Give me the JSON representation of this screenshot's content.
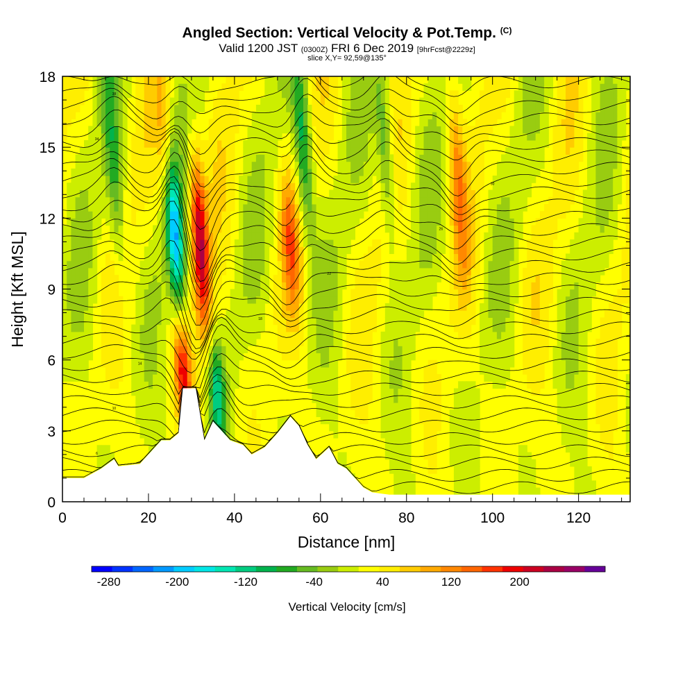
{
  "chart_data": {
    "type": "heatmap",
    "title": "Angled Section: Vertical Velocity & Pot.Temp.",
    "title_suffix": "(C)",
    "subtitle_main": "Valid 1200 JST",
    "subtitle_utc": "(0300Z)",
    "subtitle_date": "FRI 6 Dec 2019",
    "subtitle_fcst": "[9hrFcst@2229z]",
    "slice_text": "slice X,Y= 92,59@135°",
    "xlabel": "Distance [nm]",
    "ylabel": "Height [Kft MSL]",
    "xlim": [
      0,
      132
    ],
    "ylim": [
      0,
      18
    ],
    "x_ticks": [
      0,
      20,
      40,
      60,
      80,
      100,
      120
    ],
    "y_ticks": [
      0,
      3,
      6,
      9,
      12,
      15,
      18
    ],
    "colorbar": {
      "title": "Vertical Velocity [cm/s]",
      "range": [
        -300,
        300
      ],
      "tick_labels": [
        "-280",
        "-200",
        "-120",
        "-40",
        "40",
        "120",
        "200"
      ],
      "tick_values": [
        -280,
        -200,
        -120,
        -40,
        40,
        120,
        200
      ],
      "colors": [
        "#0000ff",
        "#0033ff",
        "#0066ff",
        "#0099ff",
        "#00ccff",
        "#00e6e6",
        "#00e6b3",
        "#00cc80",
        "#00b34d",
        "#22aa22",
        "#66bb22",
        "#99cc11",
        "#ccee00",
        "#ffff00",
        "#ffee00",
        "#ffcc00",
        "#ffaa00",
        "#ff8800",
        "#ff6600",
        "#ff3300",
        "#ee0000",
        "#cc0022",
        "#aa0044",
        "#990066",
        "#660099"
      ]
    },
    "updraft_cores": [
      {
        "x": 32,
        "zmin": 8,
        "zmax": 14,
        "w": 210
      },
      {
        "x": 28,
        "zmin": 4,
        "zmax": 7,
        "w": 150
      },
      {
        "x": 53,
        "zmin": 9,
        "zmax": 13,
        "w": 110
      },
      {
        "x": 92,
        "zmin": 10,
        "zmax": 17,
        "w": 90
      },
      {
        "x": 24,
        "zmin": 12,
        "zmax": 18,
        "w": 80
      }
    ],
    "downdraft_cores": [
      {
        "x": 26,
        "zmin": 9,
        "zmax": 14,
        "w": -230
      },
      {
        "x": 36,
        "zmin": 3,
        "zmax": 6,
        "w": -130
      },
      {
        "x": 56,
        "zmin": 12,
        "zmax": 18,
        "w": -120
      },
      {
        "x": 75,
        "zmin": 12,
        "zmax": 18,
        "w": -90
      },
      {
        "x": 12,
        "zmin": 10,
        "zmax": 18,
        "w": -80
      }
    ],
    "theta_contour_labels": [
      "6",
      "10",
      "14",
      "18",
      "22",
      "26",
      "30",
      "34",
      "38"
    ],
    "terrain": {
      "x": [
        0,
        5,
        9,
        12,
        13,
        18,
        20,
        23,
        25,
        27,
        28,
        31,
        33,
        35,
        37,
        39,
        42,
        44,
        47,
        50,
        53,
        55,
        57,
        59,
        62,
        64,
        66,
        68,
        70,
        72,
        74,
        76,
        80,
        90,
        100,
        110,
        120,
        132
      ],
      "z": [
        1.0,
        1.0,
        1.4,
        1.8,
        1.5,
        1.6,
        2.0,
        2.6,
        2.6,
        2.9,
        4.8,
        4.8,
        2.6,
        3.4,
        3.0,
        2.6,
        2.4,
        2.0,
        2.3,
        2.9,
        3.6,
        3.2,
        2.4,
        1.8,
        2.3,
        1.6,
        1.4,
        1.0,
        0.6,
        0.4,
        0.35,
        0.3,
        0.3,
        0.3,
        0.3,
        0.3,
        0.3,
        0.3
      ]
    }
  }
}
